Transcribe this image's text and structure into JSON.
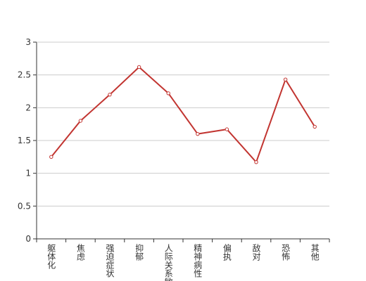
{
  "chart_data": {
    "type": "line",
    "categories": [
      "躯体化",
      "焦虑",
      "强迫症状",
      "抑郁",
      "人际关系敏感",
      "精神病性",
      "偏执",
      "敌对",
      "恐怖",
      "其他"
    ],
    "values": [
      1.25,
      1.8,
      2.2,
      2.62,
      2.22,
      1.6,
      1.67,
      1.17,
      2.43,
      1.71
    ],
    "color": "#c23531",
    "ylim": [
      0,
      3
    ],
    "yticks": [
      0,
      0.5,
      1,
      1.5,
      2,
      2.5,
      3
    ],
    "grid": true
  }
}
